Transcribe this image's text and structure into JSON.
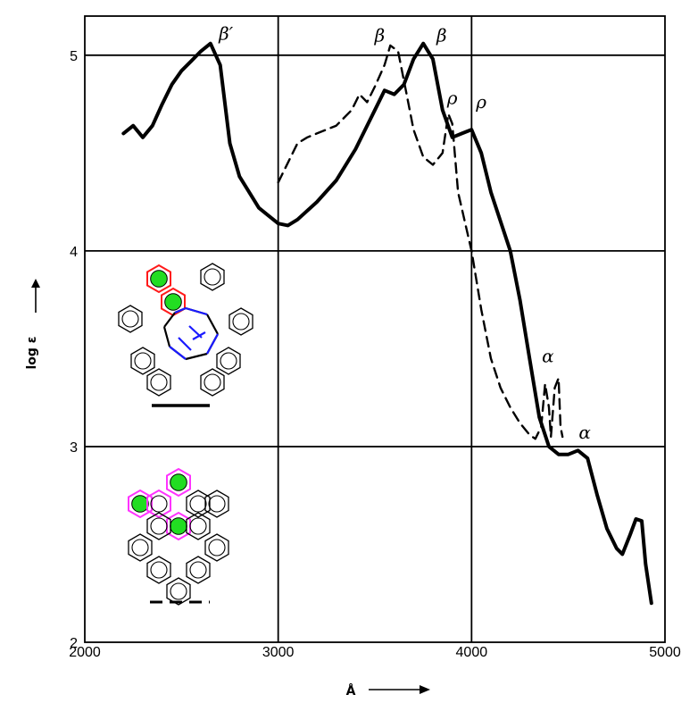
{
  "chart_data": {
    "type": "line",
    "title": "",
    "xlabel": "Å",
    "ylabel": "log ε",
    "xlim": [
      2000,
      5000
    ],
    "ylim": [
      2,
      5.2
    ],
    "x_ticks": [
      "2000",
      "3000",
      "4000",
      "5000"
    ],
    "y_ticks": [
      "2",
      "3",
      "4",
      "5"
    ],
    "grid": true,
    "series": [
      {
        "style": "solid",
        "points": [
          [
            2200,
            4.6
          ],
          [
            2250,
            4.64
          ],
          [
            2300,
            4.58
          ],
          [
            2350,
            4.64
          ],
          [
            2400,
            4.75
          ],
          [
            2450,
            4.85
          ],
          [
            2500,
            4.92
          ],
          [
            2550,
            4.97
          ],
          [
            2600,
            5.02
          ],
          [
            2650,
            5.06
          ],
          [
            2700,
            4.95
          ],
          [
            2750,
            4.55
          ],
          [
            2800,
            4.38
          ],
          [
            2850,
            4.3
          ],
          [
            2900,
            4.22
          ],
          [
            2950,
            4.18
          ],
          [
            3000,
            4.14
          ],
          [
            3050,
            4.13
          ],
          [
            3100,
            4.16
          ],
          [
            3200,
            4.25
          ],
          [
            3300,
            4.36
          ],
          [
            3400,
            4.52
          ],
          [
            3500,
            4.72
          ],
          [
            3550,
            4.82
          ],
          [
            3600,
            4.8
          ],
          [
            3650,
            4.85
          ],
          [
            3700,
            4.98
          ],
          [
            3750,
            5.06
          ],
          [
            3800,
            4.98
          ],
          [
            3850,
            4.72
          ],
          [
            3900,
            4.58
          ],
          [
            3950,
            4.6
          ],
          [
            4000,
            4.62
          ],
          [
            4050,
            4.5
          ],
          [
            4100,
            4.3
          ],
          [
            4200,
            4.0
          ],
          [
            4250,
            3.75
          ],
          [
            4300,
            3.45
          ],
          [
            4350,
            3.15
          ],
          [
            4400,
            3.0
          ],
          [
            4450,
            2.96
          ],
          [
            4500,
            2.96
          ],
          [
            4550,
            2.98
          ],
          [
            4600,
            2.94
          ],
          [
            4650,
            2.75
          ],
          [
            4700,
            2.58
          ],
          [
            4750,
            2.48
          ],
          [
            4780,
            2.45
          ],
          [
            4820,
            2.55
          ],
          [
            4850,
            2.63
          ],
          [
            4880,
            2.62
          ],
          [
            4900,
            2.4
          ],
          [
            4930,
            2.2
          ]
        ]
      },
      {
        "style": "dashed",
        "points": [
          [
            3000,
            4.35
          ],
          [
            3050,
            4.45
          ],
          [
            3100,
            4.55
          ],
          [
            3150,
            4.58
          ],
          [
            3200,
            4.6
          ],
          [
            3300,
            4.64
          ],
          [
            3380,
            4.72
          ],
          [
            3420,
            4.8
          ],
          [
            3460,
            4.76
          ],
          [
            3500,
            4.84
          ],
          [
            3550,
            4.95
          ],
          [
            3580,
            5.05
          ],
          [
            3620,
            5.02
          ],
          [
            3660,
            4.82
          ],
          [
            3700,
            4.62
          ],
          [
            3750,
            4.48
          ],
          [
            3800,
            4.44
          ],
          [
            3850,
            4.5
          ],
          [
            3880,
            4.7
          ],
          [
            3900,
            4.65
          ],
          [
            3930,
            4.3
          ],
          [
            4000,
            4.0
          ],
          [
            4050,
            3.7
          ],
          [
            4100,
            3.45
          ],
          [
            4150,
            3.3
          ],
          [
            4200,
            3.2
          ],
          [
            4250,
            3.12
          ],
          [
            4300,
            3.06
          ],
          [
            4330,
            3.04
          ],
          [
            4360,
            3.1
          ],
          [
            4380,
            3.32
          ],
          [
            4400,
            3.2
          ],
          [
            4410,
            3.05
          ],
          [
            4430,
            3.3
          ],
          [
            4450,
            3.35
          ],
          [
            4460,
            3.1
          ],
          [
            4470,
            3.05
          ]
        ]
      }
    ],
    "annotations": [
      {
        "text": "β′",
        "x": 2730,
        "y": 5.08
      },
      {
        "text": "β",
        "x": 3525,
        "y": 5.07
      },
      {
        "text": "β",
        "x": 3845,
        "y": 5.07
      },
      {
        "text": "ρ",
        "x": 3900,
        "y": 4.75
      },
      {
        "text": "ρ",
        "x": 4050,
        "y": 4.73
      },
      {
        "text": "α",
        "x": 4395,
        "y": 3.43
      },
      {
        "text": "α",
        "x": 4585,
        "y": 3.04
      }
    ],
    "colors": {
      "axis": "#000000",
      "green": "#22dd22",
      "red": "#ff1a1a",
      "blue": "#1a1aff",
      "magenta": "#ff33ff"
    }
  }
}
